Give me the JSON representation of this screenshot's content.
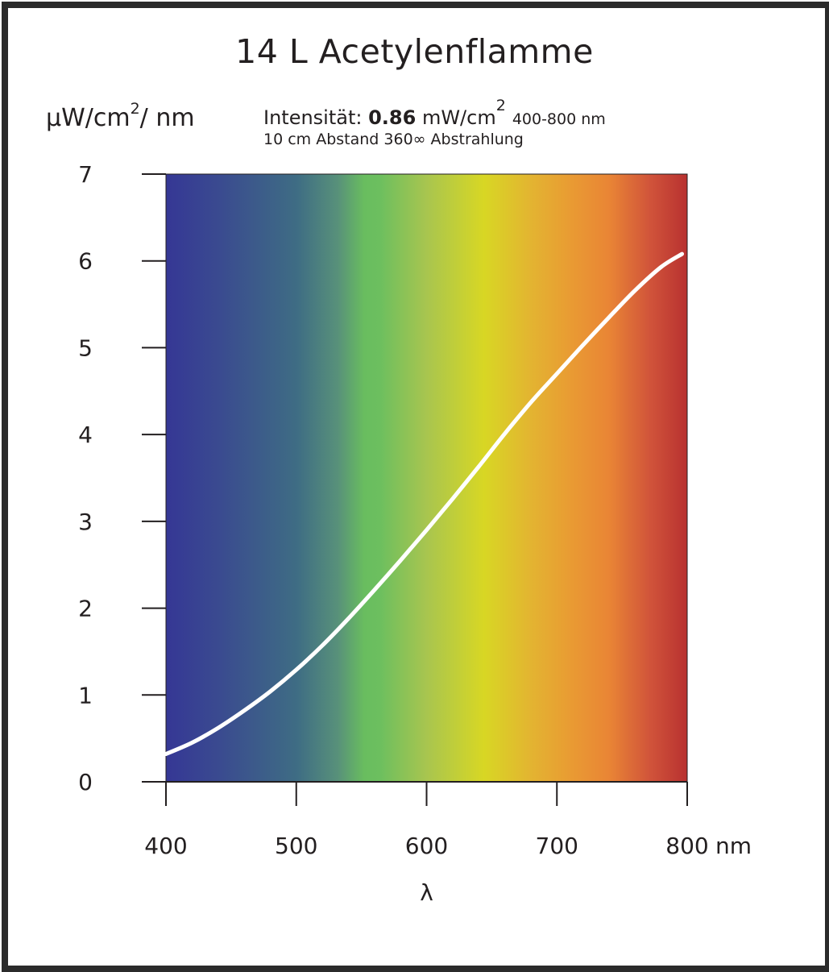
{
  "chart_data": {
    "type": "line",
    "title": "14 L Acetylenflamme",
    "ylabel_main": "μW/cm",
    "ylabel_exp": "2",
    "ylabel_tail": "/ nm",
    "info_prefix": "Intensität: ",
    "info_value": "0.86",
    "info_unit": " mW/cm",
    "info_unit_exp": "2",
    "info_range": "400-800 nm",
    "info_line2": "10 cm Abstand  360∞ Abstrahlung",
    "xlabel": "λ",
    "x_unit": "nm",
    "xlim": [
      400,
      800
    ],
    "ylim": [
      0,
      7
    ],
    "xticks": [
      400,
      500,
      600,
      700,
      800
    ],
    "xtick_labels": [
      "400",
      "500",
      "600",
      "700",
      "800"
    ],
    "yticks": [
      0,
      1,
      2,
      3,
      4,
      5,
      6,
      7
    ],
    "ytick_labels": [
      "0",
      "1",
      "2",
      "3",
      "4",
      "5",
      "6",
      "7"
    ],
    "background": "visible spectrum gradient 400-800 nm",
    "gradient_colors": [
      "#353795",
      "#3a4a90",
      "#3e6c84",
      "#58917a",
      "#69bd5f",
      "#6cbf5f",
      "#a8c54f",
      "#d8d724",
      "#e3b431",
      "#e99a33",
      "#e98535",
      "#d0533a",
      "#b83130"
    ],
    "line_color": "#ffffff",
    "series": [
      {
        "x": [
          400,
          420,
          440,
          460,
          480,
          500,
          520,
          540,
          560,
          580,
          600,
          620,
          640,
          660,
          680,
          700,
          720,
          740,
          760,
          780,
          796
        ],
        "y": [
          0.32,
          0.45,
          0.62,
          0.82,
          1.04,
          1.29,
          1.57,
          1.88,
          2.21,
          2.55,
          2.9,
          3.26,
          3.63,
          4.01,
          4.37,
          4.7,
          5.03,
          5.35,
          5.66,
          5.93,
          6.08
        ]
      }
    ]
  }
}
